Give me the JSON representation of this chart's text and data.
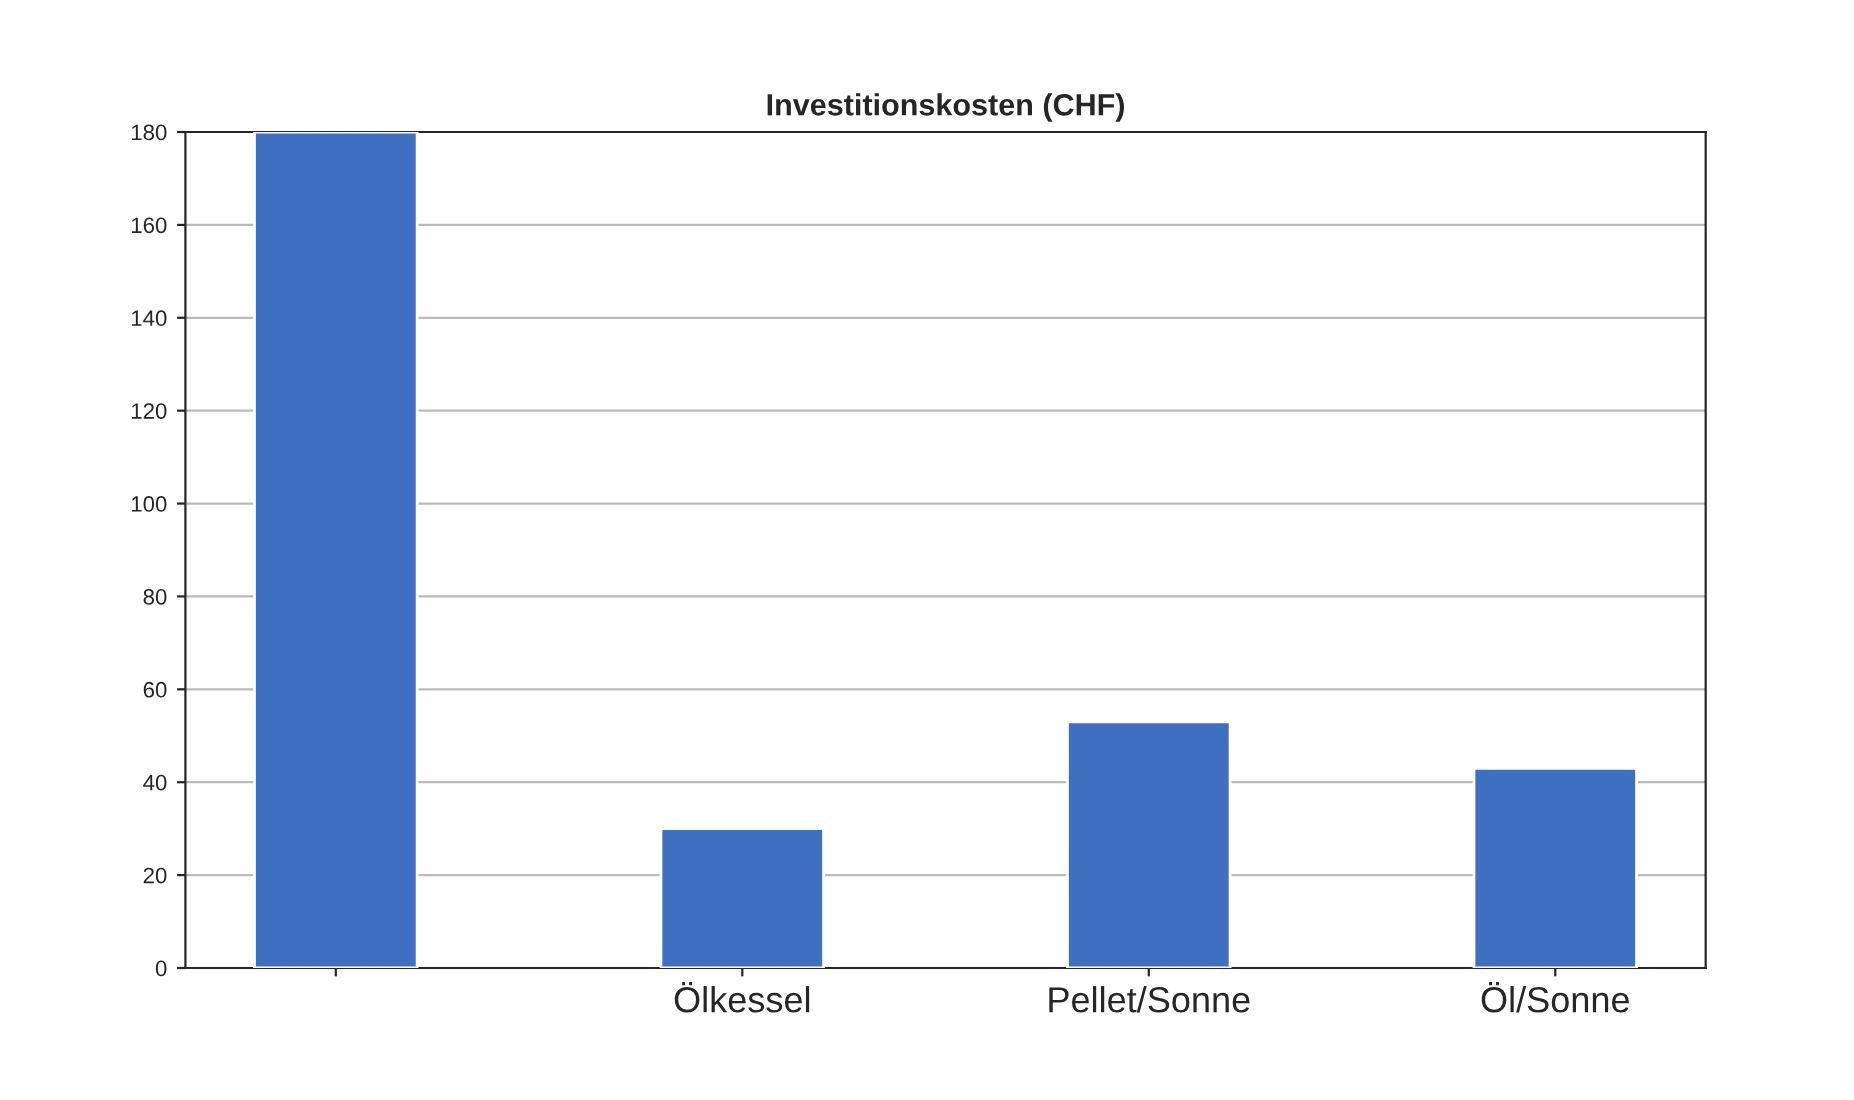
{
  "chart_data": {
    "type": "bar",
    "title": "Investitionskosten (CHF)",
    "categories": [
      null,
      "Ölkessel",
      "Pellet/Sonne",
      "Öl/Sonne"
    ],
    "values": [
      180,
      30,
      53,
      43
    ],
    "color": "#3f6fc0",
    "ylim": [
      0,
      180
    ],
    "yticks": [
      0,
      20,
      40,
      60,
      80,
      100,
      120,
      140,
      160,
      180
    ],
    "grid": "y",
    "legend": false
  }
}
